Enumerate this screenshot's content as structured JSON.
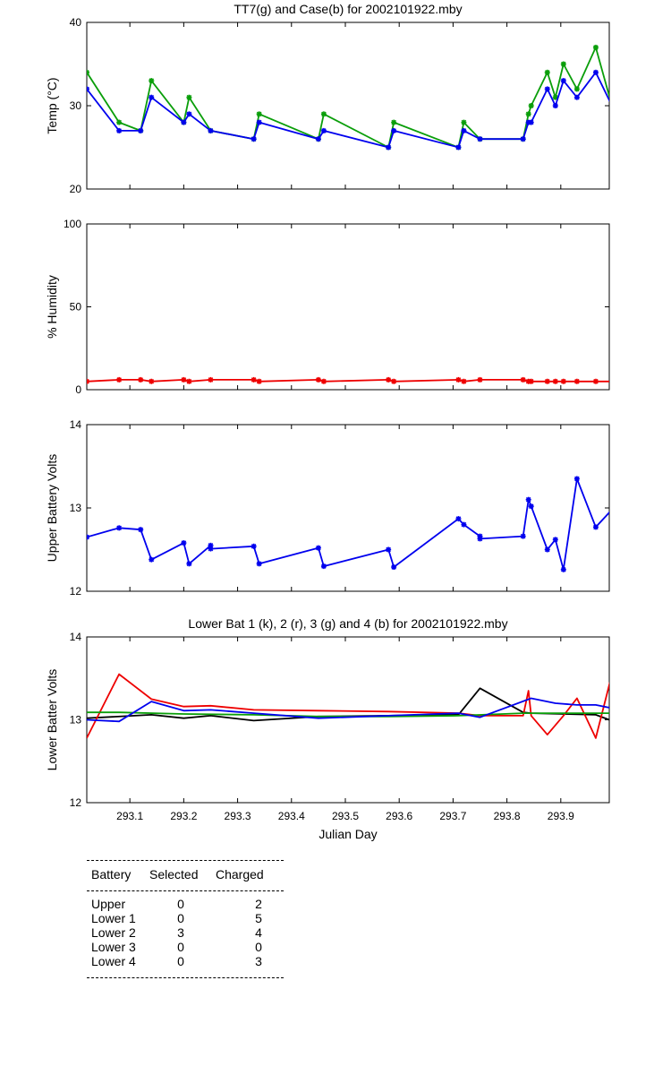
{
  "chart_data": [
    {
      "type": "line",
      "title": "TT7(g) and Case(b) for 2002101922.mby",
      "xlabel": "",
      "ylabel": "Temp  (°C)",
      "xlim": [
        293.02,
        293.99
      ],
      "ylim": [
        20,
        40
      ],
      "yticks": [
        20,
        30,
        40
      ],
      "xticks": [
        293.1,
        293.2,
        293.3,
        293.4,
        293.5,
        293.6,
        293.7,
        293.8,
        293.9
      ],
      "show_xtick_labels": false,
      "series": [
        {
          "name": "TT7",
          "color": "#0a9e0a",
          "marker": "*",
          "x": [
            293.02,
            293.08,
            293.12,
            293.14,
            293.2,
            293.21,
            293.25,
            293.33,
            293.34,
            293.45,
            293.46,
            293.58,
            293.59,
            293.71,
            293.72,
            293.75,
            293.83,
            293.84,
            293.845,
            293.875,
            293.89,
            293.905,
            293.93,
            293.965,
            293.995
          ],
          "y": [
            34,
            28,
            27,
            33,
            28,
            31,
            27,
            26,
            29,
            26,
            29,
            25,
            28,
            25,
            28,
            26,
            26,
            29,
            30,
            34,
            31,
            35,
            32,
            37,
            30
          ]
        },
        {
          "name": "Case",
          "color": "#0000ee",
          "marker": "*",
          "x": [
            293.02,
            293.08,
            293.12,
            293.14,
            293.2,
            293.21,
            293.25,
            293.33,
            293.34,
            293.45,
            293.46,
            293.58,
            293.59,
            293.71,
            293.72,
            293.75,
            293.83,
            293.84,
            293.845,
            293.875,
            293.89,
            293.905,
            293.93,
            293.965,
            293.995
          ],
          "y": [
            32,
            27,
            27,
            31,
            28,
            29,
            27,
            26,
            28,
            26,
            27,
            25,
            27,
            25,
            27,
            26,
            26,
            28,
            28,
            32,
            30,
            33,
            31,
            34,
            30
          ]
        }
      ]
    },
    {
      "type": "line",
      "title": "",
      "xlabel": "",
      "ylabel": "% Humidity",
      "xlim": [
        293.02,
        293.99
      ],
      "ylim": [
        0,
        100
      ],
      "yticks": [
        0,
        50,
        100
      ],
      "xticks": [
        293.1,
        293.2,
        293.3,
        293.4,
        293.5,
        293.6,
        293.7,
        293.8,
        293.9
      ],
      "show_xtick_labels": false,
      "series": [
        {
          "name": "Humidity",
          "color": "#ee0000",
          "marker": "*",
          "x": [
            293.02,
            293.08,
            293.12,
            293.14,
            293.2,
            293.21,
            293.25,
            293.33,
            293.34,
            293.45,
            293.46,
            293.58,
            293.59,
            293.71,
            293.72,
            293.75,
            293.83,
            293.84,
            293.845,
            293.875,
            293.89,
            293.905,
            293.93,
            293.965,
            293.995
          ],
          "y": [
            5,
            6,
            6,
            5,
            6,
            5,
            6,
            6,
            5,
            6,
            5,
            6,
            5,
            6,
            5,
            6,
            6,
            5,
            5,
            5,
            5,
            5,
            5,
            5,
            5
          ]
        }
      ]
    },
    {
      "type": "line",
      "title": "",
      "xlabel": "",
      "ylabel": "Upper Battery Volts",
      "xlim": [
        293.02,
        293.99
      ],
      "ylim": [
        12,
        14
      ],
      "yticks": [
        12,
        13,
        14
      ],
      "xticks": [
        293.1,
        293.2,
        293.3,
        293.4,
        293.5,
        293.6,
        293.7,
        293.8,
        293.9
      ],
      "show_xtick_labels": false,
      "series": [
        {
          "name": "Upper",
          "color": "#0000ee",
          "marker": "*",
          "x": [
            293.02,
            293.08,
            293.12,
            293.14,
            293.2,
            293.21,
            293.25,
            293.25,
            293.33,
            293.34,
            293.45,
            293.46,
            293.58,
            293.59,
            293.71,
            293.72,
            293.75,
            293.75,
            293.83,
            293.84,
            293.845,
            293.875,
            293.89,
            293.905,
            293.93,
            293.965,
            293.995
          ],
          "y": [
            12.65,
            12.76,
            12.74,
            12.38,
            12.58,
            12.33,
            12.55,
            12.51,
            12.54,
            12.33,
            12.52,
            12.3,
            12.5,
            12.29,
            12.87,
            12.8,
            12.66,
            12.63,
            12.66,
            13.1,
            13.02,
            12.5,
            12.62,
            12.26,
            13.35,
            12.77,
            12.98
          ]
        }
      ]
    },
    {
      "type": "line",
      "title": "Lower Bat 1 (k), 2 (r), 3 (g) and 4 (b) for 2002101922.mby",
      "xlabel": "Julian Day",
      "ylabel": "Lower Batter Volts",
      "xlim": [
        293.02,
        293.99
      ],
      "ylim": [
        12,
        14
      ],
      "yticks": [
        12,
        13,
        14
      ],
      "xticks": [
        293.1,
        293.2,
        293.3,
        293.4,
        293.5,
        293.6,
        293.7,
        293.8,
        293.9
      ],
      "show_xtick_labels": true,
      "series": [
        {
          "name": "Lower 1",
          "color": "#000000",
          "marker": "",
          "x": [
            293.02,
            293.14,
            293.2,
            293.25,
            293.33,
            293.45,
            293.58,
            293.71,
            293.75,
            293.83,
            293.845,
            293.965,
            293.99,
            293.995
          ],
          "y": [
            13.02,
            13.06,
            13.02,
            13.05,
            12.99,
            13.04,
            13.05,
            13.06,
            13.38,
            13.09,
            13.08,
            13.06,
            13.0,
            13.0
          ]
        },
        {
          "name": "Lower 2",
          "color": "#ee0000",
          "marker": "",
          "x": [
            293.02,
            293.08,
            293.14,
            293.2,
            293.25,
            293.33,
            293.45,
            293.58,
            293.71,
            293.75,
            293.83,
            293.84,
            293.845,
            293.875,
            293.905,
            293.93,
            293.965,
            293.995
          ],
          "y": [
            12.78,
            13.55,
            13.25,
            13.16,
            13.17,
            13.12,
            13.11,
            13.1,
            13.08,
            13.05,
            13.05,
            13.35,
            13.05,
            12.82,
            13.05,
            13.26,
            12.78,
            13.55
          ]
        },
        {
          "name": "Lower 3",
          "color": "#0a9e0a",
          "marker": "",
          "x": [
            293.02,
            293.08,
            293.2,
            293.33,
            293.45,
            293.58,
            293.71,
            293.83,
            293.995
          ],
          "y": [
            13.09,
            13.09,
            13.07,
            13.06,
            13.04,
            13.04,
            13.05,
            13.08,
            13.08
          ]
        },
        {
          "name": "Lower 4",
          "color": "#0000ee",
          "marker": "",
          "x": [
            293.02,
            293.08,
            293.14,
            293.2,
            293.25,
            293.33,
            293.45,
            293.58,
            293.71,
            293.75,
            293.845,
            293.89,
            293.93,
            293.965,
            293.995
          ],
          "y": [
            13.0,
            12.98,
            13.22,
            13.11,
            13.12,
            13.08,
            13.02,
            13.05,
            13.08,
            13.03,
            13.26,
            13.2,
            13.18,
            13.18,
            13.14
          ]
        }
      ]
    }
  ],
  "battery_table": {
    "headers": {
      "battery": "Battery",
      "selected": "Selected",
      "charged": "Charged"
    },
    "rows": [
      {
        "battery": "Upper",
        "selected": "0",
        "charged": "2"
      },
      {
        "battery": "Lower 1",
        "selected": "0",
        "charged": "5"
      },
      {
        "battery": "Lower 2",
        "selected": "3",
        "charged": "4"
      },
      {
        "battery": "Lower 3",
        "selected": "0",
        "charged": "0"
      },
      {
        "battery": "Lower 4",
        "selected": "0",
        "charged": "3"
      }
    ]
  }
}
